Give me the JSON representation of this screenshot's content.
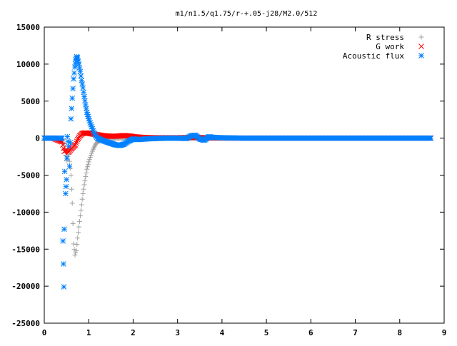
{
  "chart_data": {
    "type": "scatter",
    "title": "m1/n1.5/q1.75/r-+.05-j28/M2.0/512",
    "xlabel": "",
    "ylabel": "",
    "xlim": [
      0,
      9
    ],
    "ylim": [
      -25000,
      15000
    ],
    "xticks": [
      "0",
      "1",
      "2",
      "3",
      "4",
      "5",
      "6",
      "7",
      "8",
      "9"
    ],
    "yticks": [
      "15000",
      "10000",
      "5000",
      "0",
      "-5000",
      "-10000",
      "-15000",
      "-20000",
      "-25000"
    ],
    "grid": false,
    "legend_position": "top-right",
    "series": [
      {
        "name": "R stress",
        "marker": "plus",
        "color": "#a0a0a0",
        "points": [
          [
            0.0,
            0
          ],
          [
            0.1,
            0
          ],
          [
            0.2,
            0
          ],
          [
            0.3,
            0
          ],
          [
            0.4,
            -300
          ],
          [
            0.45,
            -1000
          ],
          [
            0.5,
            -3000
          ],
          [
            0.55,
            -2200
          ],
          [
            0.6,
            -5000
          ],
          [
            0.63,
            -8800
          ],
          [
            0.66,
            -14300
          ],
          [
            0.69,
            -15800
          ],
          [
            0.72,
            -15200
          ],
          [
            0.75,
            -13500
          ],
          [
            0.78,
            -12000
          ],
          [
            0.81,
            -10500
          ],
          [
            0.84,
            -9000
          ],
          [
            0.87,
            -7500
          ],
          [
            0.9,
            -6300
          ],
          [
            0.93,
            -5200
          ],
          [
            0.96,
            -4200
          ],
          [
            1.0,
            -3200
          ],
          [
            1.05,
            -2300
          ],
          [
            1.1,
            -1500
          ],
          [
            1.15,
            -900
          ],
          [
            1.2,
            -500
          ],
          [
            1.3,
            -200
          ],
          [
            1.4,
            -100
          ],
          [
            1.6,
            0
          ],
          [
            2.0,
            0
          ],
          [
            2.5,
            0
          ],
          [
            3.0,
            0
          ],
          [
            3.5,
            0
          ],
          [
            4.0,
            0
          ],
          [
            5.0,
            0
          ],
          [
            6.0,
            0
          ],
          [
            7.0,
            0
          ],
          [
            8.0,
            0
          ],
          [
            8.7,
            0
          ]
        ]
      },
      {
        "name": "G work",
        "marker": "cross",
        "color": "#ff0000",
        "points": [
          [
            0.0,
            0
          ],
          [
            0.2,
            0
          ],
          [
            0.4,
            -500
          ],
          [
            0.45,
            -1800
          ],
          [
            0.5,
            -1600
          ],
          [
            0.55,
            -1900
          ],
          [
            0.6,
            -1500
          ],
          [
            0.65,
            -1200
          ],
          [
            0.7,
            -900
          ],
          [
            0.75,
            -200
          ],
          [
            0.8,
            300
          ],
          [
            0.85,
            600
          ],
          [
            0.9,
            700
          ],
          [
            0.95,
            700
          ],
          [
            1.0,
            650
          ],
          [
            1.05,
            600
          ],
          [
            1.1,
            550
          ],
          [
            1.2,
            450
          ],
          [
            1.3,
            350
          ],
          [
            1.4,
            300
          ],
          [
            1.5,
            250
          ],
          [
            1.6,
            250
          ],
          [
            1.7,
            300
          ],
          [
            1.8,
            350
          ],
          [
            1.9,
            300
          ],
          [
            2.0,
            200
          ],
          [
            2.2,
            100
          ],
          [
            2.5,
            50
          ],
          [
            3.0,
            50
          ],
          [
            3.4,
            100
          ],
          [
            3.6,
            50
          ],
          [
            4.0,
            20
          ],
          [
            4.5,
            0
          ],
          [
            5.0,
            0
          ],
          [
            6.0,
            0
          ],
          [
            7.0,
            0
          ],
          [
            8.0,
            0
          ],
          [
            8.7,
            0
          ]
        ]
      },
      {
        "name": "Acoustic flux",
        "marker": "star",
        "color": "#0080ff",
        "points": [
          [
            0.0,
            0
          ],
          [
            0.1,
            0
          ],
          [
            0.2,
            0
          ],
          [
            0.3,
            0
          ],
          [
            0.4,
            0
          ],
          [
            0.42,
            -13900
          ],
          [
            0.44,
            -20100
          ],
          [
            0.46,
            -4500
          ],
          [
            0.48,
            -7500
          ],
          [
            0.5,
            -5600
          ],
          [
            0.52,
            200
          ],
          [
            0.55,
            -1100
          ],
          [
            0.57,
            -3800
          ],
          [
            0.6,
            2600
          ],
          [
            0.63,
            5400
          ],
          [
            0.66,
            8000
          ],
          [
            0.69,
            9600
          ],
          [
            0.71,
            10600
          ],
          [
            0.73,
            11000
          ],
          [
            0.75,
            10800
          ],
          [
            0.78,
            10000
          ],
          [
            0.81,
            9000
          ],
          [
            0.84,
            7800
          ],
          [
            0.87,
            6800
          ],
          [
            0.9,
            5600
          ],
          [
            0.93,
            4500
          ],
          [
            0.96,
            3500
          ],
          [
            1.0,
            2600
          ],
          [
            1.05,
            1800
          ],
          [
            1.1,
            1000
          ],
          [
            1.15,
            400
          ],
          [
            1.2,
            0
          ],
          [
            1.3,
            -300
          ],
          [
            1.4,
            -500
          ],
          [
            1.5,
            -700
          ],
          [
            1.6,
            -900
          ],
          [
            1.7,
            -1000
          ],
          [
            1.8,
            -800
          ],
          [
            1.9,
            -400
          ],
          [
            2.0,
            -100
          ],
          [
            2.1,
            -200
          ],
          [
            2.3,
            -100
          ],
          [
            2.5,
            -50
          ],
          [
            2.8,
            0
          ],
          [
            3.0,
            0
          ],
          [
            3.2,
            -50
          ],
          [
            3.3,
            300
          ],
          [
            3.4,
            400
          ],
          [
            3.5,
            -100
          ],
          [
            3.6,
            -300
          ],
          [
            3.7,
            200
          ],
          [
            3.8,
            100
          ],
          [
            4.0,
            50
          ],
          [
            4.5,
            0
          ],
          [
            5.0,
            0
          ],
          [
            5.5,
            0
          ],
          [
            6.0,
            0
          ],
          [
            6.5,
            0
          ],
          [
            7.0,
            0
          ],
          [
            7.5,
            0
          ],
          [
            8.0,
            0
          ],
          [
            8.5,
            0
          ],
          [
            8.7,
            0
          ]
        ]
      }
    ]
  }
}
